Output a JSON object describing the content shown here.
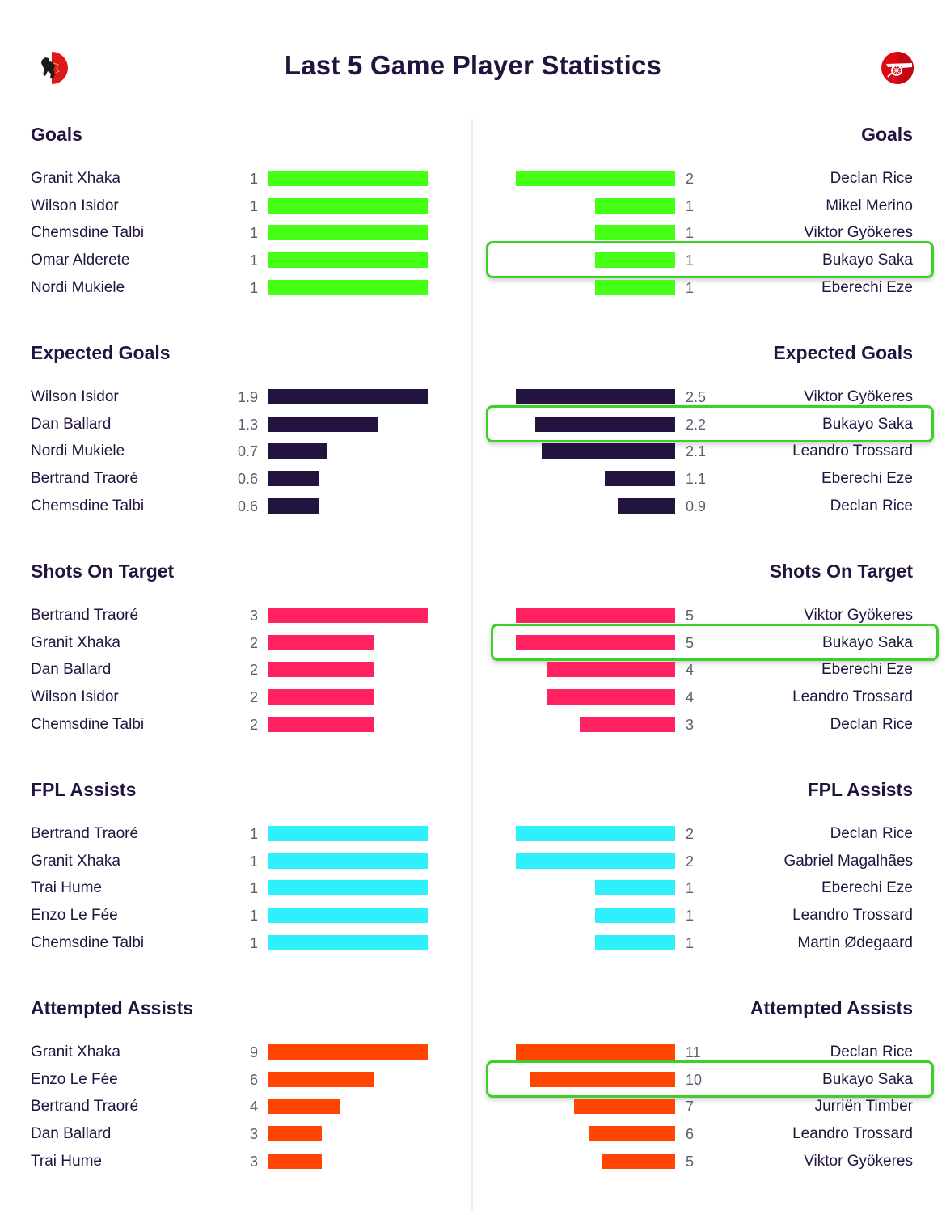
{
  "header": {
    "title": "Last 5 Game Player Statistics",
    "left_team_crest": "brentford-lion-crest-icon",
    "right_team_crest": "arsenal-cannon-crest-icon"
  },
  "colors": {
    "text": "#23133f",
    "value": "#5d5d6b",
    "goals": "#45ff14",
    "expected_goals": "#23133f",
    "shots_on_target": "#ff2160",
    "fpl_assists": "#2ef0fb",
    "attempted_assists": "#ff4500",
    "highlight": "#3dcf2a"
  },
  "sections": [
    {
      "title": "Goals",
      "color": "#45ff14",
      "left": [
        {
          "name": "Granit Xhaka",
          "value": "1"
        },
        {
          "name": "Wilson Isidor",
          "value": "1"
        },
        {
          "name": "Chemsdine Talbi",
          "value": "1"
        },
        {
          "name": "Omar Alderete",
          "value": "1"
        },
        {
          "name": "Nordi Mukiele",
          "value": "1"
        }
      ],
      "right": [
        {
          "name": "Declan Rice",
          "value": "2"
        },
        {
          "name": "Mikel Merino",
          "value": "1"
        },
        {
          "name": "Viktor Gyökeres",
          "value": "1"
        },
        {
          "name": "Bukayo Saka",
          "value": "1",
          "highlighted": true
        },
        {
          "name": "Eberechi Eze",
          "value": "1"
        }
      ]
    },
    {
      "title": "Expected Goals",
      "color": "#23133f",
      "left": [
        {
          "name": "Wilson Isidor",
          "value": "1.9"
        },
        {
          "name": "Dan Ballard",
          "value": "1.3"
        },
        {
          "name": "Nordi Mukiele",
          "value": "0.7"
        },
        {
          "name": "Bertrand Traoré",
          "value": "0.6"
        },
        {
          "name": "Chemsdine Talbi",
          "value": "0.6"
        }
      ],
      "right": [
        {
          "name": "Viktor Gyökeres",
          "value": "2.5"
        },
        {
          "name": "Bukayo Saka",
          "value": "2.2",
          "highlighted": true
        },
        {
          "name": "Leandro Trossard",
          "value": "2.1"
        },
        {
          "name": "Eberechi Eze",
          "value": "1.1"
        },
        {
          "name": "Declan Rice",
          "value": "0.9"
        }
      ]
    },
    {
      "title": "Shots On Target",
      "color": "#ff2160",
      "left": [
        {
          "name": "Bertrand Traoré",
          "value": "3"
        },
        {
          "name": "Granit Xhaka",
          "value": "2"
        },
        {
          "name": "Dan Ballard",
          "value": "2"
        },
        {
          "name": "Wilson Isidor",
          "value": "2"
        },
        {
          "name": "Chemsdine Talbi",
          "value": "2"
        }
      ],
      "right": [
        {
          "name": "Viktor Gyökeres",
          "value": "5"
        },
        {
          "name": "Bukayo Saka",
          "value": "5",
          "highlighted": true
        },
        {
          "name": "Eberechi Eze",
          "value": "4"
        },
        {
          "name": "Leandro Trossard",
          "value": "4"
        },
        {
          "name": "Declan Rice",
          "value": "3"
        }
      ]
    },
    {
      "title": "FPL Assists",
      "color": "#2ef0fb",
      "left": [
        {
          "name": "Bertrand Traoré",
          "value": "1"
        },
        {
          "name": "Granit Xhaka",
          "value": "1"
        },
        {
          "name": "Trai Hume",
          "value": "1"
        },
        {
          "name": "Enzo Le Fée",
          "value": "1"
        },
        {
          "name": "Chemsdine Talbi",
          "value": "1"
        }
      ],
      "right": [
        {
          "name": "Declan Rice",
          "value": "2"
        },
        {
          "name": "Gabriel Magalhães",
          "value": "2"
        },
        {
          "name": "Eberechi Eze",
          "value": "1"
        },
        {
          "name": "Leandro Trossard",
          "value": "1"
        },
        {
          "name": "Martin Ødegaard",
          "value": "1"
        }
      ]
    },
    {
      "title": "Attempted Assists",
      "color": "#ff4500",
      "left": [
        {
          "name": "Granit Xhaka",
          "value": "9"
        },
        {
          "name": "Enzo Le Fée",
          "value": "6"
        },
        {
          "name": "Bertrand Traoré",
          "value": "4"
        },
        {
          "name": "Dan Ballard",
          "value": "3"
        },
        {
          "name": "Trai Hume",
          "value": "3"
        }
      ],
      "right": [
        {
          "name": "Declan Rice",
          "value": "11"
        },
        {
          "name": "Bukayo Saka",
          "value": "10",
          "highlighted": true
        },
        {
          "name": "Jurriën Timber",
          "value": "7"
        },
        {
          "name": "Leandro Trossard",
          "value": "6"
        },
        {
          "name": "Viktor Gyökeres",
          "value": "5"
        }
      ]
    }
  ],
  "chart_data": [
    {
      "type": "bar",
      "title": "Goals",
      "orientation": "horizontal",
      "series": [
        {
          "name": "Left team",
          "categories": [
            "Granit Xhaka",
            "Wilson Isidor",
            "Chemsdine Talbi",
            "Omar Alderete",
            "Nordi Mukiele"
          ],
          "values": [
            1,
            1,
            1,
            1,
            1
          ]
        },
        {
          "name": "Arsenal",
          "categories": [
            "Declan Rice",
            "Mikel Merino",
            "Viktor Gyökeres",
            "Bukayo Saka",
            "Eberechi Eze"
          ],
          "values": [
            2,
            1,
            1,
            1,
            1
          ]
        }
      ]
    },
    {
      "type": "bar",
      "title": "Expected Goals",
      "orientation": "horizontal",
      "series": [
        {
          "name": "Left team",
          "categories": [
            "Wilson Isidor",
            "Dan Ballard",
            "Nordi Mukiele",
            "Bertrand Traoré",
            "Chemsdine Talbi"
          ],
          "values": [
            1.9,
            1.3,
            0.7,
            0.6,
            0.6
          ]
        },
        {
          "name": "Arsenal",
          "categories": [
            "Viktor Gyökeres",
            "Bukayo Saka",
            "Leandro Trossard",
            "Eberechi Eze",
            "Declan Rice"
          ],
          "values": [
            2.5,
            2.2,
            2.1,
            1.1,
            0.9
          ]
        }
      ]
    },
    {
      "type": "bar",
      "title": "Shots On Target",
      "orientation": "horizontal",
      "series": [
        {
          "name": "Left team",
          "categories": [
            "Bertrand Traoré",
            "Granit Xhaka",
            "Dan Ballard",
            "Wilson Isidor",
            "Chemsdine Talbi"
          ],
          "values": [
            3,
            2,
            2,
            2,
            2
          ]
        },
        {
          "name": "Arsenal",
          "categories": [
            "Viktor Gyökeres",
            "Bukayo Saka",
            "Eberechi Eze",
            "Leandro Trossard",
            "Declan Rice"
          ],
          "values": [
            5,
            5,
            4,
            4,
            3
          ]
        }
      ]
    },
    {
      "type": "bar",
      "title": "FPL Assists",
      "orientation": "horizontal",
      "series": [
        {
          "name": "Left team",
          "categories": [
            "Bertrand Traoré",
            "Granit Xhaka",
            "Trai Hume",
            "Enzo Le Fée",
            "Chemsdine Talbi"
          ],
          "values": [
            1,
            1,
            1,
            1,
            1
          ]
        },
        {
          "name": "Arsenal",
          "categories": [
            "Declan Rice",
            "Gabriel Magalhães",
            "Eberechi Eze",
            "Leandro Trossard",
            "Martin Ødegaard"
          ],
          "values": [
            2,
            2,
            1,
            1,
            1
          ]
        }
      ]
    },
    {
      "type": "bar",
      "title": "Attempted Assists",
      "orientation": "horizontal",
      "series": [
        {
          "name": "Left team",
          "categories": [
            "Granit Xhaka",
            "Enzo Le Fée",
            "Bertrand Traoré",
            "Dan Ballard",
            "Trai Hume"
          ],
          "values": [
            9,
            6,
            4,
            3,
            3
          ]
        },
        {
          "name": "Arsenal",
          "categories": [
            "Declan Rice",
            "Bukayo Saka",
            "Jurriën Timber",
            "Leandro Trossard",
            "Viktor Gyökeres"
          ],
          "values": [
            11,
            10,
            7,
            6,
            5
          ]
        }
      ]
    }
  ]
}
